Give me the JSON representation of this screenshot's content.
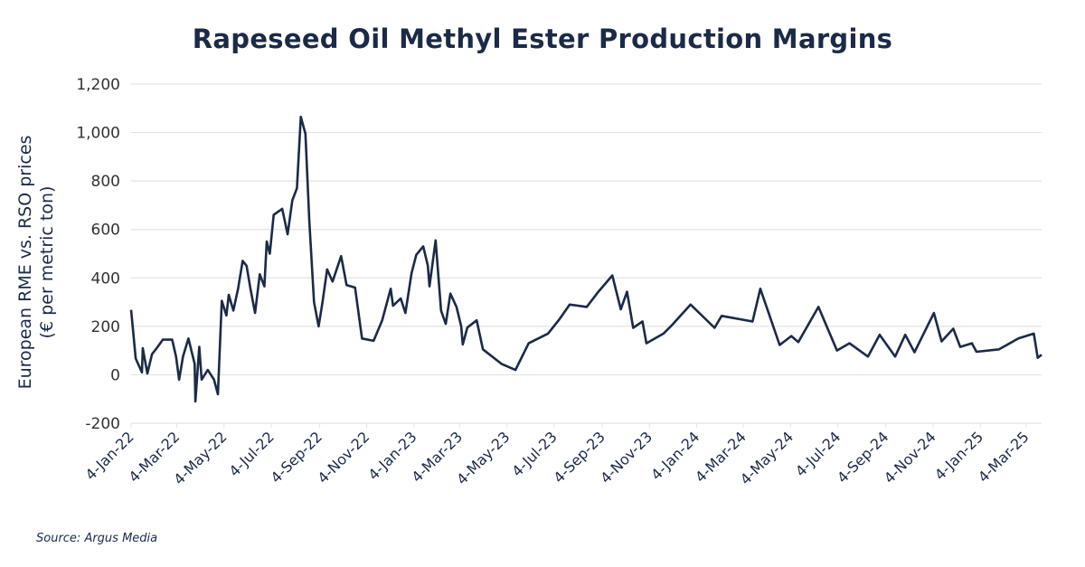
{
  "chart_data": {
    "type": "line",
    "title": "Rapeseed Oil Methyl Ester Production Margins",
    "ylabel_lines": [
      "European RME vs. RSO prices",
      "(€ per metric ton)"
    ],
    "xlabel": "",
    "ylim": [
      -200,
      1200
    ],
    "yticks": [
      "-200",
      "0",
      "200",
      "400",
      "600",
      "800",
      "1,000",
      "1,200"
    ],
    "ytick_values": [
      -200,
      0,
      200,
      400,
      600,
      800,
      1000,
      1200
    ],
    "xlim": [
      "2022-01-04",
      "2025-03-24"
    ],
    "xticks": [
      "4-Jan-22",
      "4-Mar-22",
      "4-May-22",
      "4-Jul-22",
      "4-Sep-22",
      "4-Nov-22",
      "4-Jan-23",
      "4-Mar-23",
      "4-May-23",
      "4-Jul-23",
      "4-Sep-23",
      "4-Nov-23",
      "4-Jan-24",
      "4-Mar-24",
      "4-May-24",
      "4-Jul-24",
      "4-Sep-24",
      "4-Nov-24",
      "4-Jan-25",
      "4-Mar-25"
    ],
    "xtick_dates": [
      "2022-01-04",
      "2022-03-04",
      "2022-05-04",
      "2022-07-04",
      "2022-09-04",
      "2022-11-04",
      "2023-01-04",
      "2023-03-04",
      "2023-05-04",
      "2023-07-04",
      "2023-09-04",
      "2023-11-04",
      "2024-01-04",
      "2024-03-04",
      "2024-05-04",
      "2024-07-04",
      "2024-09-04",
      "2024-11-04",
      "2025-01-04",
      "2025-03-04"
    ],
    "grid": "horizontal",
    "line_color": "#1b2a47",
    "series": [
      {
        "x": [
          "2022-01-04",
          "2022-01-10",
          "2022-01-18",
          "2022-01-19",
          "2022-01-25",
          "2022-01-31",
          "2022-02-06",
          "2022-02-14",
          "2022-02-26",
          "2022-03-03",
          "2022-03-07",
          "2022-03-12",
          "2022-03-19",
          "2022-03-27",
          "2022-03-28",
          "2022-04-02",
          "2022-04-05",
          "2022-04-13",
          "2022-04-21",
          "2022-04-26",
          "2022-05-01",
          "2022-05-07",
          "2022-05-10",
          "2022-05-16",
          "2022-05-22",
          "2022-05-28",
          "2022-06-02",
          "2022-06-07",
          "2022-06-13",
          "2022-06-19",
          "2022-06-25",
          "2022-06-28",
          "2022-07-02",
          "2022-07-07",
          "2022-07-18",
          "2022-07-25",
          "2022-07-31",
          "2022-08-06",
          "2022-08-11",
          "2022-08-17",
          "2022-08-22",
          "2022-08-28",
          "2022-09-03",
          "2022-09-08",
          "2022-09-14",
          "2022-09-21",
          "2022-10-02",
          "2022-10-09",
          "2022-10-20",
          "2022-10-29",
          "2022-11-13",
          "2022-11-24",
          "2022-12-05",
          "2022-12-08",
          "2022-12-18",
          "2022-12-24",
          "2023-01-01",
          "2023-01-07",
          "2023-01-16",
          "2023-01-22",
          "2023-01-24",
          "2023-02-01",
          "2023-02-08",
          "2023-02-14",
          "2023-02-20",
          "2023-02-28",
          "2023-03-06",
          "2023-03-08",
          "2023-03-14",
          "2023-03-26",
          "2023-04-03",
          "2023-04-27",
          "2023-05-15",
          "2023-06-01",
          "2023-06-26",
          "2023-07-11",
          "2023-07-24",
          "2023-08-15",
          "2023-08-30",
          "2023-09-17",
          "2023-09-28",
          "2023-10-06",
          "2023-10-14",
          "2023-10-26",
          "2023-10-31",
          "2023-11-22",
          "2023-12-03",
          "2023-12-27",
          "2024-01-27",
          "2024-02-05",
          "2024-03-16",
          "2024-03-26",
          "2024-04-20",
          "2024-05-05",
          "2024-05-14",
          "2024-06-09",
          "2024-07-03",
          "2024-07-19",
          "2024-08-12",
          "2024-08-27",
          "2024-09-16",
          "2024-09-29",
          "2024-10-11",
          "2024-11-05",
          "2024-11-15",
          "2024-11-30",
          "2024-12-09",
          "2024-12-24",
          "2024-12-30",
          "2025-01-28",
          "2025-02-22",
          "2025-03-14",
          "2025-03-19",
          "2025-03-24"
        ],
        "y": [
          268,
          67,
          10,
          110,
          5,
          85,
          110,
          145,
          145,
          75,
          -20,
          75,
          150,
          45,
          -110,
          115,
          -20,
          20,
          -20,
          -80,
          305,
          245,
          330,
          265,
          355,
          470,
          450,
          355,
          255,
          415,
          365,
          550,
          500,
          660,
          685,
          580,
          720,
          770,
          1065,
          995,
          635,
          300,
          200,
          300,
          435,
          385,
          490,
          370,
          360,
          150,
          140,
          225,
          355,
          285,
          315,
          255,
          420,
          495,
          530,
          450,
          365,
          555,
          265,
          210,
          335,
          280,
          200,
          125,
          195,
          225,
          105,
          45,
          20,
          130,
          170,
          230,
          290,
          280,
          343,
          410,
          270,
          343,
          194,
          220,
          130,
          170,
          205,
          290,
          194,
          243,
          220,
          355,
          123,
          160,
          135,
          280,
          100,
          130,
          75,
          165,
          75,
          165,
          93,
          255,
          138,
          190,
          115,
          130,
          95,
          105,
          150,
          170,
          70,
          83
        ]
      }
    ]
  },
  "source": "Source: Argus Media"
}
